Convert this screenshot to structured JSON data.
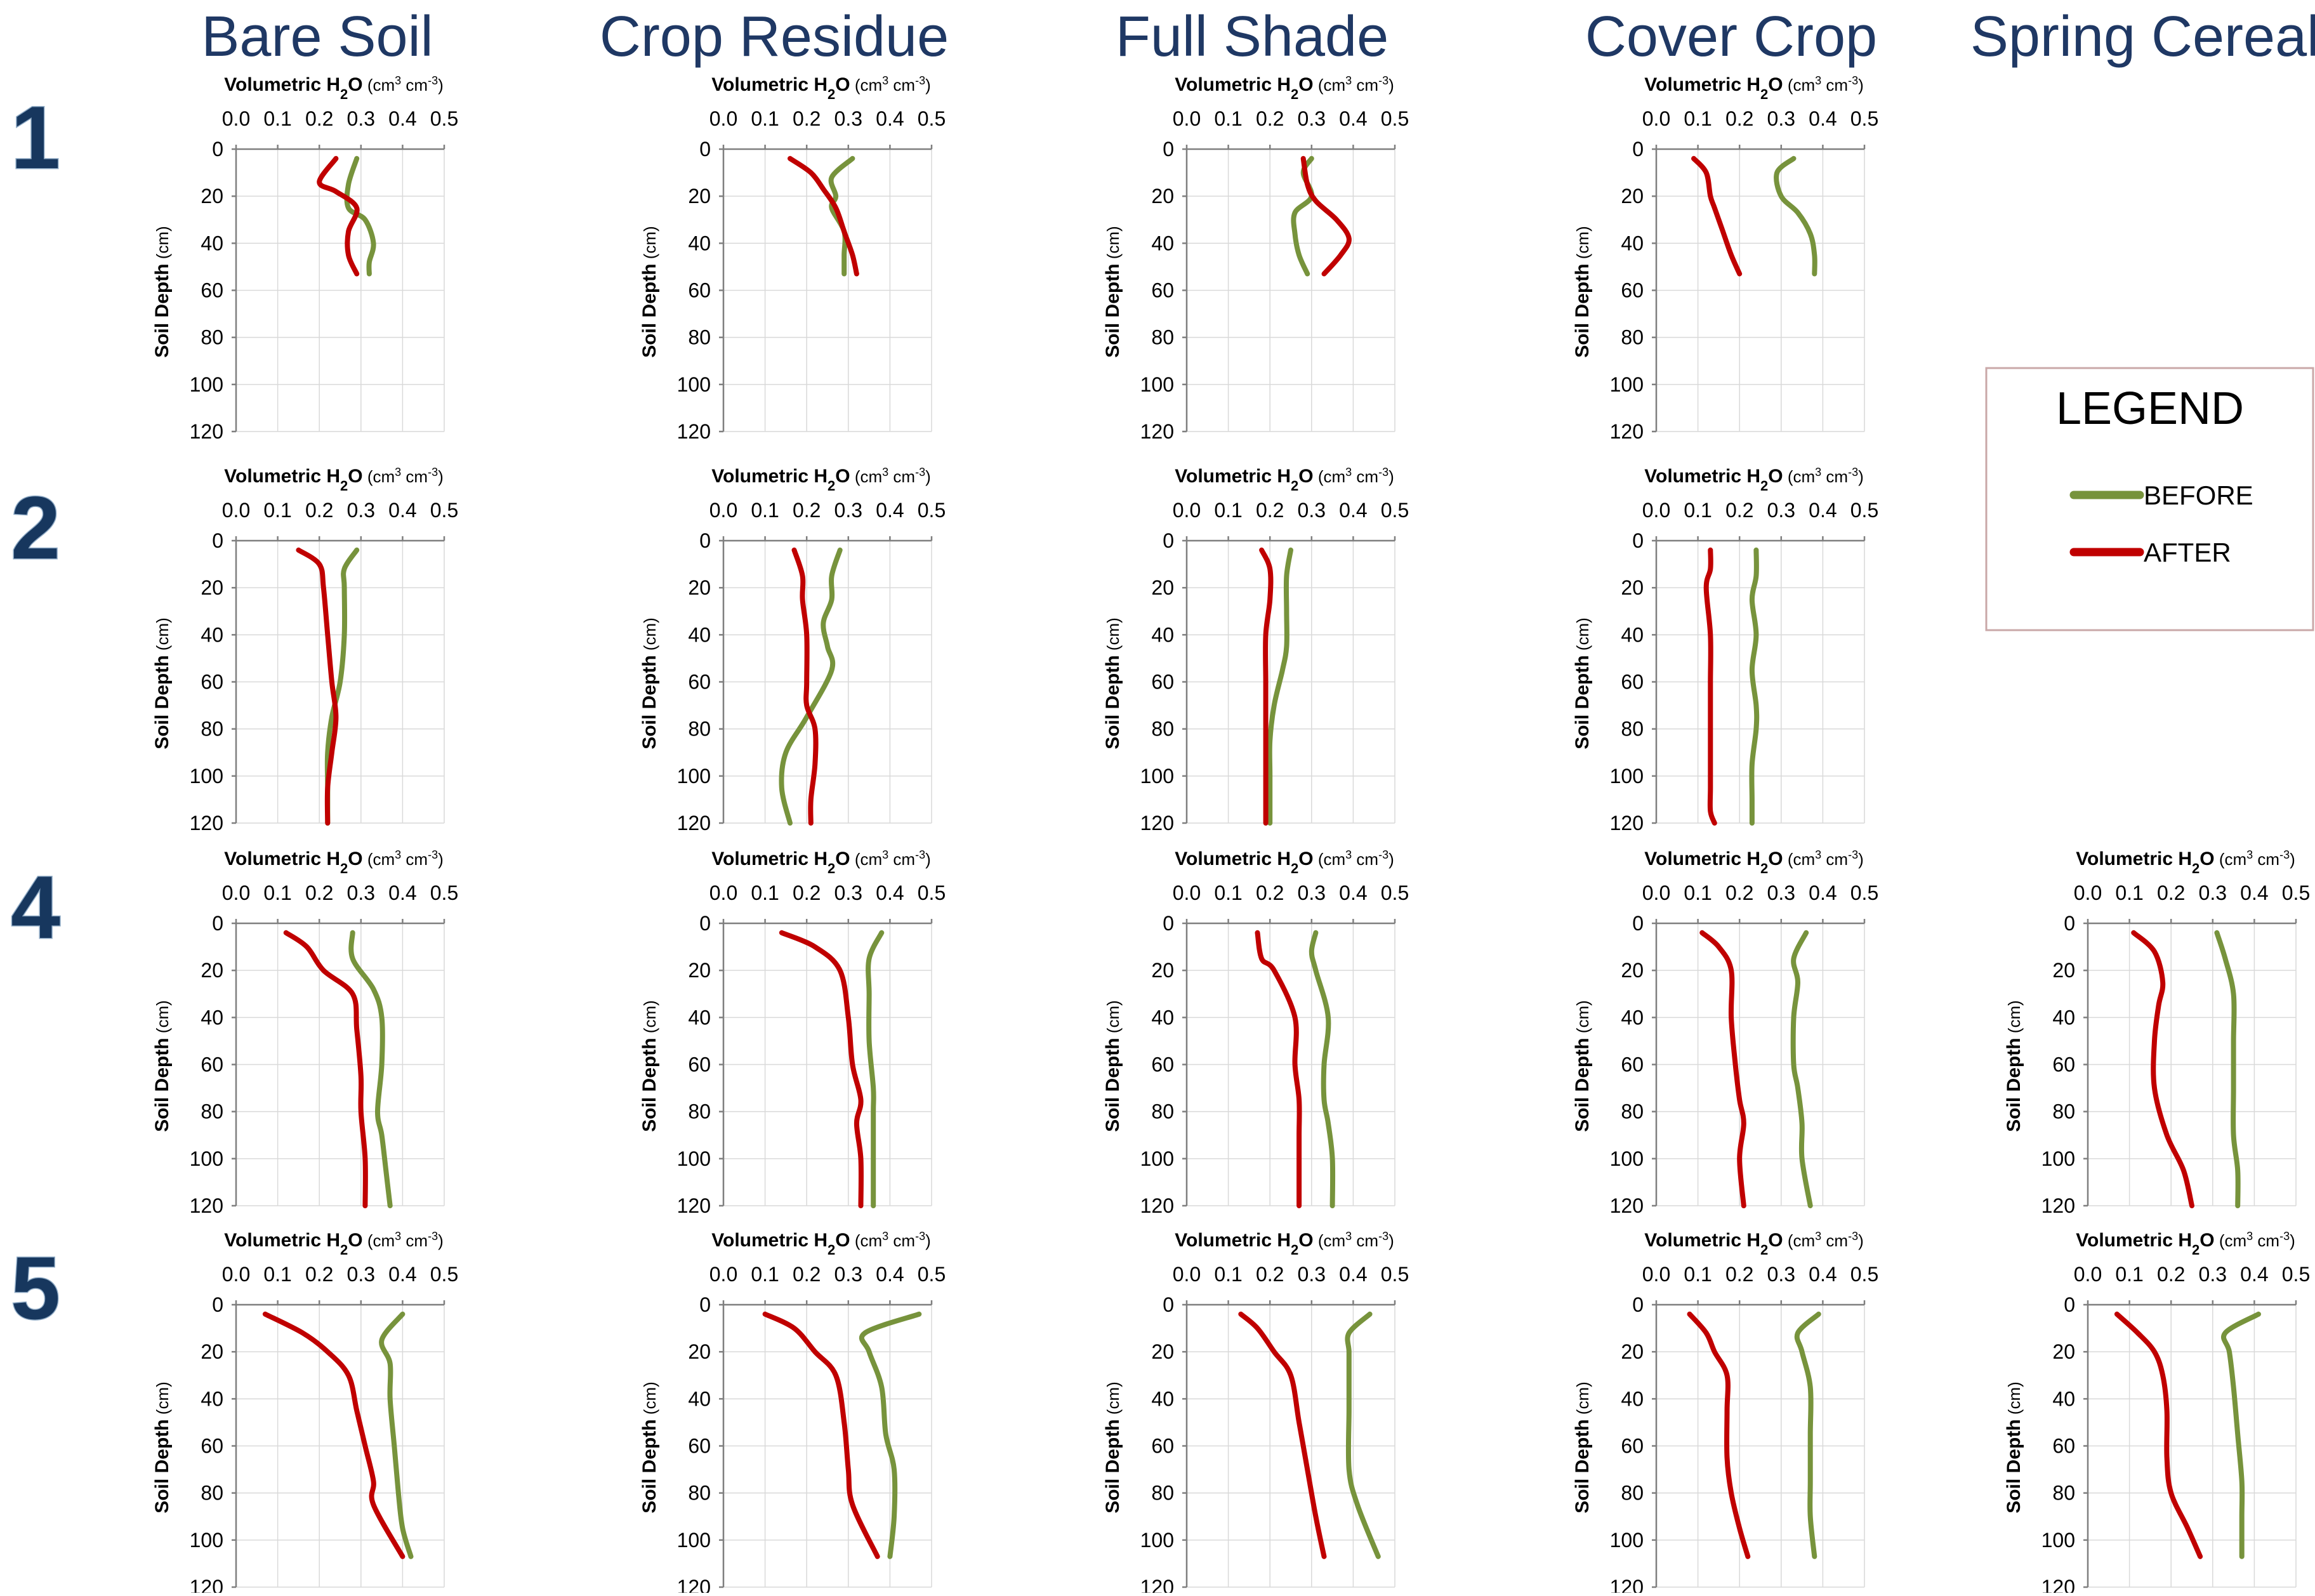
{
  "columns": [
    "Bare Soil",
    "Crop Residue",
    "Full Shade",
    "Cover Crop",
    "Spring Cereal"
  ],
  "rows": [
    "1",
    "2",
    "4",
    "5"
  ],
  "axis_title_main": "Volumetric H",
  "axis_title_sub": "2",
  "axis_title_after": "O",
  "axis_units": "(cm",
  "axis_units_exp1": "3",
  "axis_units_mid": " cm",
  "axis_units_exp2": "-3",
  "axis_units_end": ")",
  "y_label_main": "Soil Depth",
  "y_label_units": " (cm)",
  "x_ticks": [
    "0.0",
    "0.1",
    "0.2",
    "0.3",
    "0.4",
    "0.5"
  ],
  "y_ticks": [
    "0",
    "20",
    "40",
    "60",
    "80",
    "100",
    "120"
  ],
  "legend": {
    "title": "LEGEND",
    "items": [
      {
        "label": "BEFORE",
        "color": "#77933c"
      },
      {
        "label": "AFTER",
        "color": "#c00000"
      }
    ]
  },
  "colors": {
    "before": "#77933c",
    "after": "#c00000",
    "title": "#1f3864"
  },
  "chart_data": [
    {
      "type": "line",
      "row": "1",
      "column": "Bare Soil",
      "xlim": [
        0,
        0.5
      ],
      "ylim": [
        120,
        0
      ],
      "series": [
        {
          "name": "BEFORE",
          "x": [
            0.29,
            0.27,
            0.27,
            0.31,
            0.33,
            0.32,
            0.32
          ],
          "y": [
            4,
            15,
            25,
            30,
            40,
            48,
            53
          ]
        },
        {
          "name": "AFTER",
          "x": [
            0.24,
            0.2,
            0.24,
            0.29,
            0.27,
            0.27,
            0.29
          ],
          "y": [
            4,
            14,
            18,
            25,
            35,
            45,
            53
          ]
        }
      ]
    },
    {
      "type": "line",
      "row": "1",
      "column": "Crop Residue",
      "xlim": [
        0,
        0.5
      ],
      "ylim": [
        120,
        0
      ],
      "series": [
        {
          "name": "BEFORE",
          "x": [
            0.31,
            0.26,
            0.27,
            0.26,
            0.29,
            0.29,
            0.29
          ],
          "y": [
            4,
            12,
            20,
            25,
            35,
            45,
            53
          ]
        },
        {
          "name": "AFTER",
          "x": [
            0.16,
            0.21,
            0.24,
            0.27,
            0.29,
            0.31,
            0.32
          ],
          "y": [
            4,
            10,
            17,
            25,
            35,
            45,
            53
          ]
        }
      ]
    },
    {
      "type": "line",
      "row": "1",
      "column": "Full Shade",
      "xlim": [
        0,
        0.5
      ],
      "ylim": [
        120,
        0
      ],
      "series": [
        {
          "name": "BEFORE",
          "x": [
            0.3,
            0.28,
            0.3,
            0.26,
            0.26,
            0.27,
            0.29
          ],
          "y": [
            4,
            10,
            20,
            27,
            36,
            45,
            53
          ]
        },
        {
          "name": "AFTER",
          "x": [
            0.28,
            0.29,
            0.31,
            0.36,
            0.39,
            0.37,
            0.33
          ],
          "y": [
            4,
            15,
            22,
            30,
            38,
            45,
            53
          ]
        }
      ]
    },
    {
      "type": "line",
      "row": "1",
      "column": "Cover Crop",
      "xlim": [
        0,
        0.5
      ],
      "ylim": [
        120,
        0
      ],
      "series": [
        {
          "name": "BEFORE",
          "x": [
            0.33,
            0.29,
            0.3,
            0.34,
            0.37,
            0.38,
            0.38
          ],
          "y": [
            4,
            10,
            20,
            27,
            36,
            45,
            53
          ]
        },
        {
          "name": "AFTER",
          "x": [
            0.09,
            0.12,
            0.13,
            0.14,
            0.16,
            0.18,
            0.2
          ],
          "y": [
            4,
            10,
            20,
            25,
            35,
            45,
            53
          ]
        }
      ]
    },
    {
      "type": "line",
      "row": "2",
      "column": "Bare Soil",
      "xlim": [
        0,
        0.5
      ],
      "ylim": [
        120,
        0
      ],
      "series": [
        {
          "name": "BEFORE",
          "x": [
            0.29,
            0.26,
            0.26,
            0.26,
            0.25,
            0.23,
            0.22,
            0.22,
            0.22
          ],
          "y": [
            4,
            12,
            20,
            40,
            60,
            75,
            90,
            105,
            120
          ]
        },
        {
          "name": "AFTER",
          "x": [
            0.15,
            0.2,
            0.21,
            0.22,
            0.23,
            0.24,
            0.23,
            0.22,
            0.22
          ],
          "y": [
            4,
            10,
            20,
            40,
            60,
            75,
            90,
            105,
            120
          ]
        }
      ]
    },
    {
      "type": "line",
      "row": "2",
      "column": "Crop Residue",
      "xlim": [
        0,
        0.5
      ],
      "ylim": [
        120,
        0
      ],
      "series": [
        {
          "name": "BEFORE",
          "x": [
            0.28,
            0.26,
            0.26,
            0.24,
            0.25,
            0.26,
            0.2,
            0.15,
            0.14,
            0.16
          ],
          "y": [
            4,
            15,
            25,
            35,
            45,
            55,
            75,
            90,
            105,
            120
          ]
        },
        {
          "name": "AFTER",
          "x": [
            0.17,
            0.19,
            0.19,
            0.2,
            0.2,
            0.2,
            0.22,
            0.22,
            0.21,
            0.21
          ],
          "y": [
            4,
            15,
            25,
            40,
            60,
            70,
            80,
            95,
            110,
            120
          ]
        }
      ]
    },
    {
      "type": "line",
      "row": "2",
      "column": "Full Shade",
      "xlim": [
        0,
        0.5
      ],
      "ylim": [
        120,
        0
      ],
      "series": [
        {
          "name": "BEFORE",
          "x": [
            0.25,
            0.24,
            0.24,
            0.24,
            0.23,
            0.21,
            0.2,
            0.2,
            0.2
          ],
          "y": [
            4,
            15,
            30,
            45,
            55,
            70,
            85,
            100,
            120
          ]
        },
        {
          "name": "AFTER",
          "x": [
            0.18,
            0.2,
            0.2,
            0.19,
            0.19,
            0.19,
            0.19,
            0.19,
            0.19
          ],
          "y": [
            4,
            12,
            25,
            40,
            60,
            75,
            90,
            105,
            120
          ]
        }
      ]
    },
    {
      "type": "line",
      "row": "2",
      "column": "Cover Crop",
      "xlim": [
        0,
        0.5
      ],
      "ylim": [
        120,
        0
      ],
      "series": [
        {
          "name": "BEFORE",
          "x": [
            0.24,
            0.24,
            0.23,
            0.24,
            0.23,
            0.24,
            0.24,
            0.23,
            0.23,
            0.23
          ],
          "y": [
            4,
            15,
            25,
            40,
            55,
            70,
            80,
            95,
            110,
            120
          ]
        },
        {
          "name": "AFTER",
          "x": [
            0.13,
            0.13,
            0.12,
            0.13,
            0.13,
            0.13,
            0.13,
            0.13,
            0.13,
            0.14
          ],
          "y": [
            4,
            12,
            20,
            40,
            60,
            75,
            90,
            105,
            115,
            120
          ]
        }
      ]
    },
    {
      "type": "line",
      "row": "4",
      "column": "Bare Soil",
      "xlim": [
        0,
        0.5
      ],
      "ylim": [
        120,
        0
      ],
      "series": [
        {
          "name": "BEFORE",
          "x": [
            0.28,
            0.28,
            0.33,
            0.35,
            0.35,
            0.34,
            0.35,
            0.36,
            0.37
          ],
          "y": [
            4,
            15,
            28,
            40,
            60,
            80,
            90,
            105,
            120
          ]
        },
        {
          "name": "AFTER",
          "x": [
            0.12,
            0.17,
            0.21,
            0.28,
            0.29,
            0.3,
            0.3,
            0.31,
            0.31
          ],
          "y": [
            4,
            10,
            20,
            30,
            45,
            65,
            80,
            100,
            120
          ]
        }
      ]
    },
    {
      "type": "line",
      "row": "4",
      "column": "Crop Residue",
      "xlim": [
        0,
        0.5
      ],
      "ylim": [
        120,
        0
      ],
      "series": [
        {
          "name": "BEFORE",
          "x": [
            0.38,
            0.35,
            0.35,
            0.35,
            0.36,
            0.36,
            0.36,
            0.36
          ],
          "y": [
            4,
            15,
            30,
            50,
            70,
            80,
            100,
            120
          ]
        },
        {
          "name": "AFTER",
          "x": [
            0.14,
            0.22,
            0.28,
            0.3,
            0.31,
            0.33,
            0.32,
            0.33,
            0.33
          ],
          "y": [
            4,
            10,
            20,
            40,
            60,
            75,
            85,
            100,
            120
          ]
        }
      ]
    },
    {
      "type": "line",
      "row": "4",
      "column": "Full Shade",
      "xlim": [
        0,
        0.5
      ],
      "ylim": [
        120,
        0
      ],
      "series": [
        {
          "name": "BEFORE",
          "x": [
            0.31,
            0.3,
            0.31,
            0.34,
            0.33,
            0.33,
            0.34,
            0.35,
            0.35
          ],
          "y": [
            4,
            12,
            20,
            40,
            60,
            75,
            85,
            100,
            120
          ]
        },
        {
          "name": "AFTER",
          "x": [
            0.17,
            0.18,
            0.21,
            0.26,
            0.26,
            0.27,
            0.27,
            0.27,
            0.27
          ],
          "y": [
            4,
            15,
            20,
            40,
            60,
            75,
            90,
            105,
            120
          ]
        }
      ]
    },
    {
      "type": "line",
      "row": "4",
      "column": "Cover Crop",
      "xlim": [
        0,
        0.5
      ],
      "ylim": [
        120,
        0
      ],
      "series": [
        {
          "name": "BEFORE",
          "x": [
            0.36,
            0.33,
            0.34,
            0.33,
            0.33,
            0.34,
            0.35,
            0.35,
            0.37
          ],
          "y": [
            4,
            15,
            25,
            40,
            60,
            70,
            85,
            100,
            120
          ]
        },
        {
          "name": "AFTER",
          "x": [
            0.11,
            0.15,
            0.18,
            0.18,
            0.19,
            0.2,
            0.21,
            0.2,
            0.21
          ],
          "y": [
            4,
            10,
            20,
            40,
            60,
            75,
            85,
            100,
            120
          ]
        }
      ]
    },
    {
      "type": "line",
      "row": "4",
      "column": "Spring Cereal",
      "xlim": [
        0,
        0.5
      ],
      "ylim": [
        120,
        0
      ],
      "series": [
        {
          "name": "BEFORE",
          "x": [
            0.31,
            0.33,
            0.35,
            0.35,
            0.35,
            0.35,
            0.36,
            0.36
          ],
          "y": [
            4,
            15,
            30,
            50,
            70,
            90,
            105,
            120
          ]
        },
        {
          "name": "AFTER",
          "x": [
            0.11,
            0.16,
            0.18,
            0.17,
            0.16,
            0.16,
            0.19,
            0.23,
            0.25
          ],
          "y": [
            4,
            12,
            25,
            35,
            50,
            70,
            90,
            105,
            120
          ]
        }
      ]
    },
    {
      "type": "line",
      "row": "5",
      "column": "Bare Soil",
      "xlim": [
        0,
        0.5
      ],
      "ylim": [
        120,
        0
      ],
      "series": [
        {
          "name": "BEFORE",
          "x": [
            0.4,
            0.35,
            0.37,
            0.37,
            0.38,
            0.39,
            0.4,
            0.42
          ],
          "y": [
            4,
            15,
            25,
            40,
            60,
            80,
            95,
            107
          ]
        },
        {
          "name": "AFTER",
          "x": [
            0.07,
            0.16,
            0.22,
            0.27,
            0.29,
            0.31,
            0.33,
            0.33,
            0.4
          ],
          "y": [
            4,
            12,
            20,
            30,
            45,
            60,
            75,
            85,
            107
          ]
        }
      ]
    },
    {
      "type": "line",
      "row": "5",
      "column": "Crop Residue",
      "xlim": [
        0,
        0.5
      ],
      "ylim": [
        120,
        0
      ],
      "series": [
        {
          "name": "BEFORE",
          "x": [
            0.47,
            0.34,
            0.35,
            0.38,
            0.39,
            0.41,
            0.41,
            0.4
          ],
          "y": [
            4,
            12,
            20,
            35,
            55,
            70,
            90,
            107
          ]
        },
        {
          "name": "AFTER",
          "x": [
            0.1,
            0.17,
            0.22,
            0.27,
            0.29,
            0.3,
            0.31,
            0.37
          ],
          "y": [
            4,
            10,
            20,
            30,
            50,
            70,
            85,
            107
          ]
        }
      ]
    },
    {
      "type": "line",
      "row": "5",
      "column": "Full Shade",
      "xlim": [
        0,
        0.5
      ],
      "ylim": [
        120,
        0
      ],
      "series": [
        {
          "name": "BEFORE",
          "x": [
            0.44,
            0.39,
            0.39,
            0.39,
            0.39,
            0.39,
            0.41,
            0.46
          ],
          "y": [
            4,
            12,
            20,
            30,
            45,
            70,
            85,
            107
          ]
        },
        {
          "name": "AFTER",
          "x": [
            0.13,
            0.17,
            0.21,
            0.25,
            0.27,
            0.29,
            0.31,
            0.33
          ],
          "y": [
            4,
            10,
            20,
            30,
            50,
            70,
            90,
            107
          ]
        }
      ]
    },
    {
      "type": "line",
      "row": "5",
      "column": "Cover Crop",
      "xlim": [
        0,
        0.5
      ],
      "ylim": [
        120,
        0
      ],
      "series": [
        {
          "name": "BEFORE",
          "x": [
            0.39,
            0.34,
            0.35,
            0.37,
            0.37,
            0.37,
            0.37,
            0.38
          ],
          "y": [
            4,
            12,
            20,
            35,
            55,
            75,
            90,
            107
          ]
        },
        {
          "name": "AFTER",
          "x": [
            0.08,
            0.12,
            0.14,
            0.17,
            0.17,
            0.17,
            0.18,
            0.2,
            0.22
          ],
          "y": [
            4,
            12,
            20,
            30,
            45,
            65,
            80,
            95,
            107
          ]
        }
      ]
    },
    {
      "type": "line",
      "row": "5",
      "column": "Spring Cereal",
      "xlim": [
        0,
        0.5
      ],
      "ylim": [
        120,
        0
      ],
      "series": [
        {
          "name": "BEFORE",
          "x": [
            0.41,
            0.33,
            0.34,
            0.35,
            0.36,
            0.37,
            0.37,
            0.37
          ],
          "y": [
            4,
            12,
            20,
            35,
            55,
            75,
            90,
            107
          ]
        },
        {
          "name": "AFTER",
          "x": [
            0.07,
            0.12,
            0.16,
            0.18,
            0.19,
            0.19,
            0.2,
            0.24,
            0.27
          ],
          "y": [
            4,
            12,
            20,
            30,
            45,
            65,
            80,
            95,
            107
          ]
        }
      ]
    }
  ]
}
